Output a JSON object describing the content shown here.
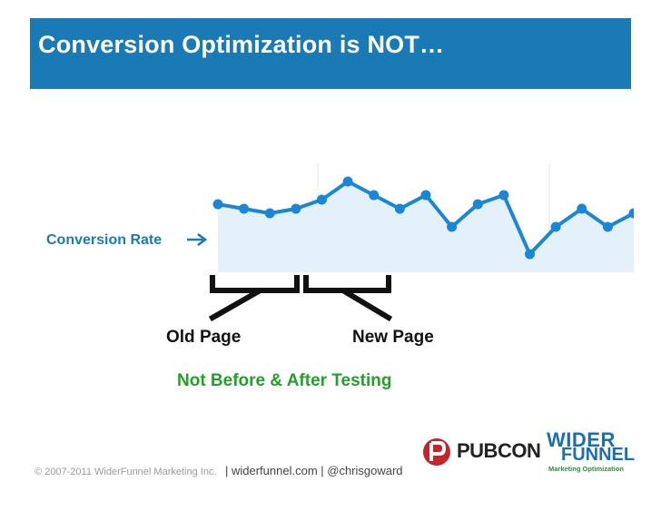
{
  "title": "Conversion Optimization is NOT…",
  "chart_label": "Conversion Rate",
  "segments": {
    "old_label": "Old Page",
    "new_label": "New Page"
  },
  "caption": "Not Before & After Testing",
  "footer": {
    "copyright": "© 2007-2011 WiderFunnel Marketing Inc.",
    "links": "| widerfunnel.com | @chrisgoward"
  },
  "logos": {
    "pubcon": "PUBCON",
    "widerfunnel_top": "WIDER",
    "widerfunnel_mid": "FUNNEL",
    "widerfunnel_tagline": "Marketing Optimization"
  },
  "colors": {
    "title_bar": "#1a7ab5",
    "line": "#1a87d6",
    "area": "#e4f0fa",
    "caption": "#23a02a"
  },
  "chart_data": {
    "type": "area",
    "x": [
      1,
      2,
      3,
      4,
      5,
      6,
      7,
      8,
      9,
      10,
      11,
      12,
      13,
      14,
      15,
      16,
      17
    ],
    "series": [
      {
        "values": [
          0.53,
          0.52,
          0.51,
          0.52,
          0.54,
          0.58,
          0.55,
          0.52,
          0.55,
          0.48,
          0.53,
          0.55,
          0.42,
          0.48,
          0.52,
          0.48,
          0.51
        ]
      }
    ],
    "ylim": [
      0.4,
      0.6
    ],
    "grid": true,
    "legend": "none"
  }
}
